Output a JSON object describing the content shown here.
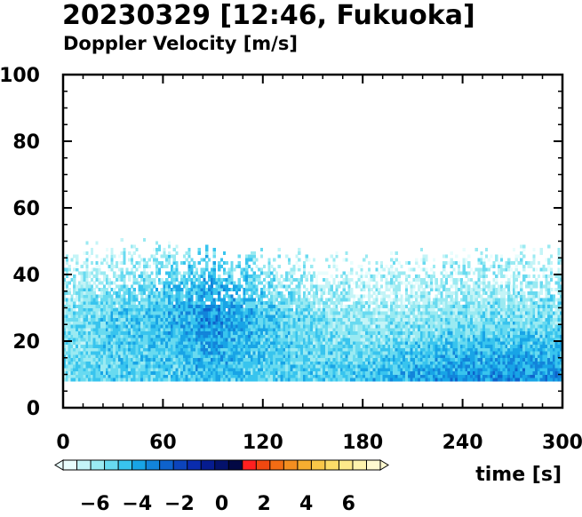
{
  "header": {
    "title": "20230329 [12:46, Fukuoka]",
    "subtitle": "Doppler Velocity [m/s]"
  },
  "chart_data": {
    "type": "heatmap",
    "title": "20230329 [12:46, Fukuoka]",
    "subtitle": "Doppler Velocity [m/s]",
    "xlabel": "time [s]",
    "ylabel": "",
    "xlim": [
      0,
      300
    ],
    "ylim": [
      0,
      100
    ],
    "x_ticks": [
      0,
      60,
      120,
      180,
      240,
      300
    ],
    "y_ticks": [
      0,
      20,
      40,
      60,
      80,
      100
    ],
    "grid": false,
    "colorbar": {
      "ticks": [
        "−6",
        "−4",
        "−2",
        "0",
        "2",
        "4",
        "6"
      ],
      "range": [
        -7.5,
        7.5
      ],
      "colors": [
        "#e8fdfd",
        "#c4f4f7",
        "#9aeaf2",
        "#68daf0",
        "#38c4ee",
        "#18a4e6",
        "#1284da",
        "#0e62cc",
        "#0c44bc",
        "#0a2cae",
        "#061c90",
        "#04126c",
        "#020844",
        "#ff2020",
        "#f14810",
        "#f26c14",
        "#f48e20",
        "#f7ad30",
        "#f9c748",
        "#fbdc68",
        "#fde98a",
        "#fef3ac",
        "#fffad0"
      ]
    },
    "series": [
      {
        "description_of_field": "Doppler velocity (m/s) vs time (s) and height; all values negative, ranging about -7 to -2",
        "time": [
          0,
          30,
          60,
          90,
          120,
          150,
          180,
          210,
          240,
          270,
          300
        ],
        "height_min": [
          8,
          8,
          8,
          8,
          8,
          8,
          8,
          8,
          8,
          8,
          8
        ],
        "height_top": [
          44,
          46,
          47,
          45,
          44,
          43,
          42,
          43,
          44,
          45,
          44
        ],
        "velocity_low_levels": [
          -5.5,
          -5,
          -5,
          -4.5,
          -5,
          -5,
          -4.5,
          -4,
          -3.5,
          -3.5,
          -3.5
        ],
        "velocity_mid_levels": [
          -5.5,
          -5,
          -4.5,
          -3.5,
          -4.5,
          -5.5,
          -6,
          -6,
          -5.5,
          -5.5,
          -5.5
        ],
        "velocity_upper_levels": [
          -6.5,
          -6.5,
          -6,
          -5,
          -6,
          -6.5,
          -6.5,
          -6.5,
          -6.5,
          -6.5,
          -6.5
        ]
      }
    ]
  }
}
